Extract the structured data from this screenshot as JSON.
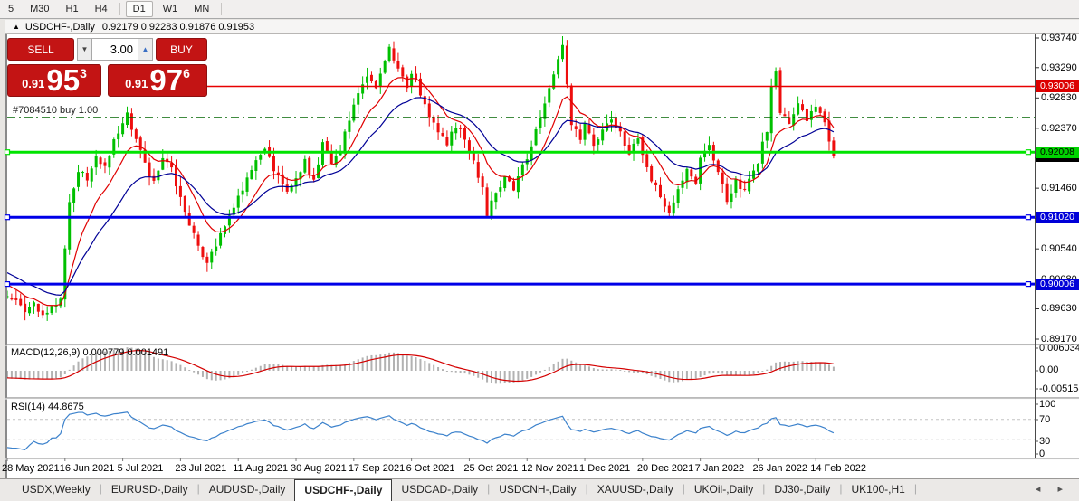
{
  "toolbar": {
    "timeframes": [
      "5",
      "M30",
      "H1",
      "H4",
      "D1",
      "W1",
      "MN"
    ],
    "active_timeframe": "D1"
  },
  "title": {
    "arrow": "▲",
    "symbol": "USDCHF-,Daily",
    "ohlc": "0.92179 0.92283 0.91876 0.91953"
  },
  "trade": {
    "sell_label": "SELL",
    "buy_label": "BUY",
    "volume": "3.00",
    "vol_down": "▼",
    "vol_up": "▲",
    "sell_price": {
      "prefix": "0.91",
      "big": "95",
      "sup": "3"
    },
    "buy_price": {
      "prefix": "0.91",
      "big": "97",
      "sup": "6"
    }
  },
  "position": {
    "label": "#7084510 buy 1.00"
  },
  "price_axis": {
    "ticks": [
      "0.93740",
      "0.93290",
      "0.92830",
      "0.92370",
      "0.91920",
      "0.91460",
      "0.91000",
      "0.90540",
      "0.90080",
      "0.89630",
      "0.89170"
    ],
    "badges": [
      {
        "text": "0.91953",
        "price": 0.91953,
        "bg": "#000000",
        "fg": "#ffffff",
        "z": 1
      },
      {
        "text": "0.93006",
        "price": 0.93006,
        "bg": "#dc0000",
        "fg": "#ffffff",
        "z": 2
      },
      {
        "text": "0.92008",
        "price": 0.92008,
        "bg": "#00d400",
        "fg": "#000000",
        "z": 3
      },
      {
        "text": "0.91020",
        "price": 0.9102,
        "bg": "#0000d8",
        "fg": "#ffffff",
        "z": 2
      },
      {
        "text": "0.90006",
        "price": 0.90006,
        "bg": "#0000d8",
        "fg": "#ffffff",
        "z": 2
      }
    ]
  },
  "indicators": {
    "macd": {
      "label": "MACD(12,26,9) 0.000779 0.001491",
      "params": [
        12,
        26,
        9
      ],
      "axis": [
        "0.006034",
        "0.00",
        "-0.005158"
      ]
    },
    "rsi": {
      "label": "RSI(14) 44.8675",
      "period": 14,
      "levels": [
        70,
        30
      ],
      "axis": [
        "100",
        "70",
        "30",
        "0"
      ]
    }
  },
  "dates": [
    "28 May 2021",
    "16 Jun 2021",
    "5 Jul 2021",
    "23 Jul 2021",
    "11 Aug 2021",
    "30 Aug 2021",
    "17 Sep 2021",
    "6 Oct 2021",
    "25 Oct 2021",
    "12 Nov 2021",
    "1 Dec 2021",
    "20 Dec 2021",
    "7 Jan 2022",
    "26 Jan 2022",
    "14 Feb 2022"
  ],
  "tabs": {
    "items": [
      "USDX,Weekly",
      "EURUSD-,Daily",
      "AUDUSD-,Daily",
      "USDCHF-,Daily",
      "USDCAD-,Daily",
      "USDCNH-,Daily",
      "XAUUSD-,Daily",
      "UKOil-,Daily",
      "DJ30-,Daily",
      "UK100-,H1"
    ],
    "active": "USDCHF-,Daily",
    "scroll_left": "◂",
    "scroll_right": "▸"
  },
  "chart_data": {
    "type": "candlestick",
    "symbol": "USDCHF",
    "timeframe": "Daily",
    "last_ohlc": {
      "open": 0.92179,
      "high": 0.92283,
      "low": 0.91876,
      "close": 0.91953
    },
    "y_ticks": [
      0.9374,
      0.9329,
      0.9283,
      0.9237,
      0.9192,
      0.9146,
      0.91,
      0.9054,
      0.9008,
      0.8963,
      0.8917
    ],
    "x_date_labels_every_days": 13,
    "total_days": 187,
    "price_anchors": [
      [
        0,
        0.8985
      ],
      [
        2,
        0.8972
      ],
      [
        4,
        0.8962
      ],
      [
        6,
        0.8968
      ],
      [
        8,
        0.895
      ],
      [
        10,
        0.8962
      ],
      [
        12,
        0.8975
      ],
      [
        13,
        0.906
      ],
      [
        14,
        0.912
      ],
      [
        16,
        0.9175
      ],
      [
        18,
        0.9162
      ],
      [
        20,
        0.919
      ],
      [
        22,
        0.9178
      ],
      [
        24,
        0.9215
      ],
      [
        26,
        0.9248
      ],
      [
        27,
        0.9262
      ],
      [
        28,
        0.9235
      ],
      [
        30,
        0.9205
      ],
      [
        31,
        0.918
      ],
      [
        33,
        0.9152
      ],
      [
        35,
        0.9192
      ],
      [
        37,
        0.9178
      ],
      [
        39,
        0.913
      ],
      [
        41,
        0.9088
      ],
      [
        43,
        0.9058
      ],
      [
        45,
        0.9035
      ],
      [
        47,
        0.906
      ],
      [
        49,
        0.9092
      ],
      [
        52,
        0.9132
      ],
      [
        54,
        0.9158
      ],
      [
        56,
        0.9185
      ],
      [
        58,
        0.9205
      ],
      [
        60,
        0.9175
      ],
      [
        63,
        0.9138
      ],
      [
        65,
        0.9162
      ],
      [
        67,
        0.9185
      ],
      [
        69,
        0.9158
      ],
      [
        71,
        0.9212
      ],
      [
        73,
        0.918
      ],
      [
        75,
        0.9205
      ],
      [
        77,
        0.9252
      ],
      [
        79,
        0.9295
      ],
      [
        81,
        0.9318
      ],
      [
        83,
        0.9295
      ],
      [
        85,
        0.934
      ],
      [
        86,
        0.9362
      ],
      [
        88,
        0.9328
      ],
      [
        90,
        0.9302
      ],
      [
        91,
        0.9322
      ],
      [
        93,
        0.9288
      ],
      [
        95,
        0.9258
      ],
      [
        97,
        0.9232
      ],
      [
        99,
        0.9215
      ],
      [
        101,
        0.9242
      ],
      [
        103,
        0.9222
      ],
      [
        105,
        0.9185
      ],
      [
        107,
        0.9148
      ],
      [
        108,
        0.9108
      ],
      [
        110,
        0.9138
      ],
      [
        112,
        0.9165
      ],
      [
        114,
        0.9142
      ],
      [
        116,
        0.9178
      ],
      [
        118,
        0.921
      ],
      [
        120,
        0.9252
      ],
      [
        122,
        0.9295
      ],
      [
        124,
        0.9338
      ],
      [
        125,
        0.9365
      ],
      [
        127,
        0.9242
      ],
      [
        129,
        0.9218
      ],
      [
        130,
        0.9242
      ],
      [
        132,
        0.9208
      ],
      [
        134,
        0.9238
      ],
      [
        136,
        0.9252
      ],
      [
        138,
        0.9228
      ],
      [
        140,
        0.9202
      ],
      [
        142,
        0.9222
      ],
      [
        143,
        0.9192
      ],
      [
        145,
        0.9158
      ],
      [
        147,
        0.9132
      ],
      [
        149,
        0.9108
      ],
      [
        151,
        0.9142
      ],
      [
        153,
        0.9175
      ],
      [
        155,
        0.9158
      ],
      [
        156,
        0.9188
      ],
      [
        158,
        0.9208
      ],
      [
        160,
        0.9172
      ],
      [
        162,
        0.9128
      ],
      [
        164,
        0.9155
      ],
      [
        166,
        0.9142
      ],
      [
        168,
        0.9172
      ],
      [
        169,
        0.9188
      ],
      [
        171,
        0.9235
      ],
      [
        172,
        0.9298
      ],
      [
        173,
        0.9322
      ],
      [
        174,
        0.9262
      ],
      [
        176,
        0.924
      ],
      [
        178,
        0.9272
      ],
      [
        180,
        0.9252
      ],
      [
        182,
        0.9268
      ],
      [
        184,
        0.9242
      ],
      [
        185,
        0.9222
      ],
      [
        186,
        0.91953
      ]
    ],
    "levels": [
      {
        "price": 0.93006,
        "color": "#e80000",
        "width": 1.5,
        "handles": false
      },
      {
        "price": 0.92008,
        "color": "#00e400",
        "width": 3,
        "handles": true
      },
      {
        "price": 0.9102,
        "color": "#0000e8",
        "width": 3,
        "handles": true
      },
      {
        "price": 0.90006,
        "color": "#0000e8",
        "width": 3,
        "handles": true
      }
    ],
    "position_line": {
      "price": 0.92533,
      "color": "#006600",
      "style": "dash-dot"
    },
    "colors": {
      "bull": "#00c000",
      "bear": "#ee0e0e",
      "ma_fast": "#e00000",
      "ma_slow": "#000096",
      "macd_hist": "#b2b2b2",
      "macd_signal": "#d40000",
      "rsi_line": "#3c82cc",
      "rsi_grid": "#c4c4c4"
    },
    "ma_periods": {
      "fast": 10,
      "slow": 22
    }
  }
}
